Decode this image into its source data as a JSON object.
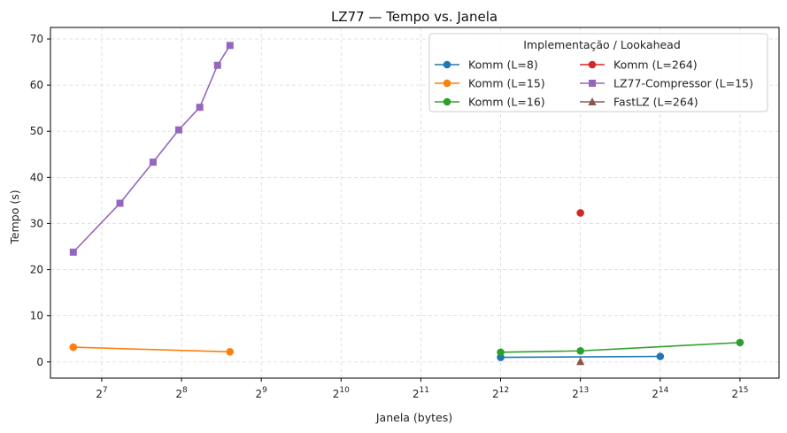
{
  "chart_data": {
    "type": "line",
    "title": "LZ77 — Tempo vs. Janela",
    "xlabel": "Janela (bytes)",
    "ylabel": "Tempo (s)",
    "x_scale": "log2",
    "xlim": [
      82,
      46000
    ],
    "ylim": [
      -3.5,
      72.5
    ],
    "x_ticks": [
      128,
      256,
      512,
      1024,
      2048,
      4096,
      8192,
      16384,
      32768
    ],
    "x_tick_exponents": [
      "7",
      "8",
      "9",
      "10",
      "11",
      "12",
      "13",
      "14",
      "15"
    ],
    "x_tick_base": "2",
    "y_ticks": [
      0,
      10,
      20,
      30,
      40,
      50,
      60,
      70
    ],
    "grid": true,
    "legend": {
      "title": "Implementação / Lookahead",
      "placement": "upper-right",
      "columns": 2
    },
    "series": [
      {
        "name": "Komm (L=8)",
        "color": "#1f77b4",
        "marker": "circle",
        "x": [
          4096,
          16384
        ],
        "y": [
          1.0,
          1.2
        ]
      },
      {
        "name": "Komm (L=15)",
        "color": "#ff7f0e",
        "marker": "circle",
        "x": [
          100,
          390
        ],
        "y": [
          3.2,
          2.2
        ]
      },
      {
        "name": "Komm (L=16)",
        "color": "#2ca02c",
        "marker": "circle",
        "x": [
          4096,
          8192,
          32768
        ],
        "y": [
          2.1,
          2.4,
          4.2
        ]
      },
      {
        "name": "Komm (L=264)",
        "color": "#d62728",
        "marker": "circle",
        "x": [
          8192
        ],
        "y": [
          32.3
        ]
      },
      {
        "name": "LZ77-Compressor (L=15)",
        "color": "#9467bd",
        "marker": "square",
        "x": [
          100,
          150,
          200,
          250,
          300,
          350,
          390
        ],
        "y": [
          23.8,
          34.4,
          43.3,
          50.3,
          55.2,
          64.3,
          68.6
        ]
      },
      {
        "name": "FastLZ (L=264)",
        "color": "#8c564b",
        "marker": "triangle",
        "x": [
          8192
        ],
        "y": [
          0.1
        ]
      }
    ]
  }
}
